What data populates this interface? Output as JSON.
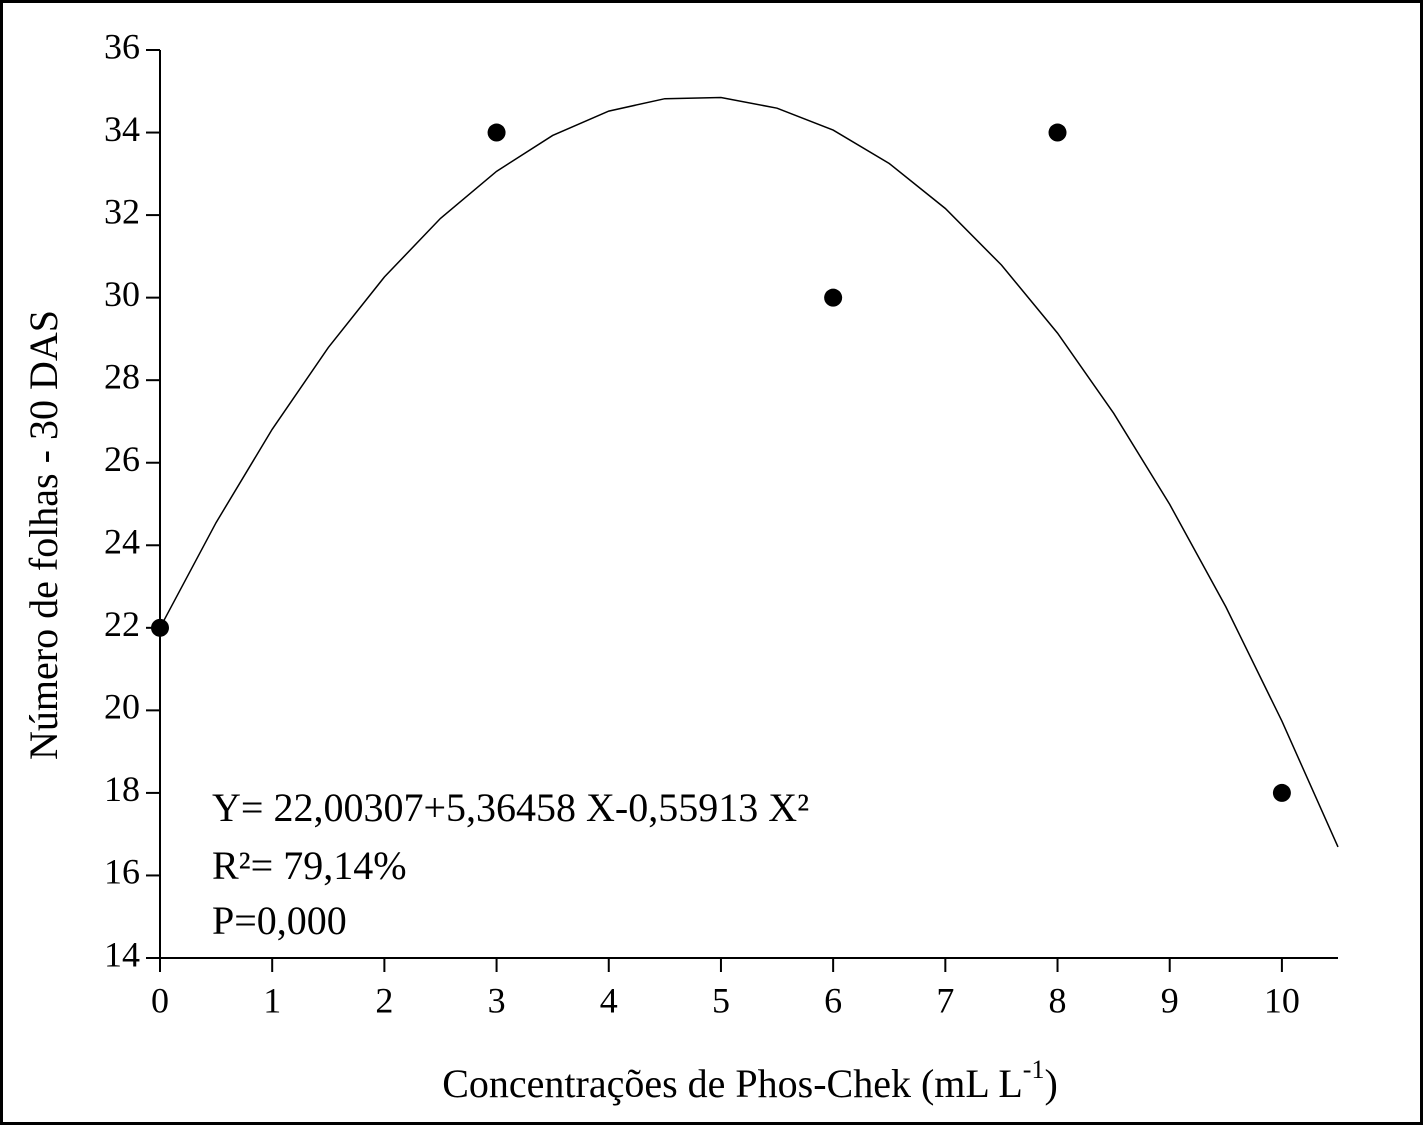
{
  "chart_data": {
    "type": "scatter",
    "x_label": [
      "Concentrações de Phos-Chek (mL L",
      "-1",
      ")"
    ],
    "y_label": "Número de folhas - 30 DAS",
    "annotations": [
      "Y= 22,00307+5,36458 X-0,55913 X²",
      "R²= 79,14%",
      "P=0,000"
    ],
    "x": [
      0,
      3,
      6,
      8,
      10
    ],
    "values": [
      22,
      34,
      30,
      34,
      18
    ],
    "color": "#000000",
    "fit": {
      "x": [
        0,
        0.5,
        1,
        1.5,
        2,
        2.5,
        3,
        3.5,
        4,
        4.5,
        5,
        5.5,
        6,
        6.5,
        7,
        7.5,
        8,
        8.5,
        9,
        9.5,
        10,
        10.5
      ],
      "values": [
        22.0,
        24.55,
        26.81,
        28.79,
        30.5,
        31.92,
        33.06,
        33.93,
        34.52,
        34.82,
        34.85,
        34.59,
        34.06,
        33.25,
        32.16,
        30.79,
        29.14,
        27.2,
        24.99,
        22.51,
        19.74,
        16.69
      ]
    },
    "xlim": [
      0,
      10.5
    ],
    "xticks": [
      0,
      1,
      2,
      3,
      4,
      5,
      6,
      7,
      8,
      9,
      10
    ],
    "ylim": [
      14,
      36
    ],
    "yticks": [
      14,
      16,
      18,
      20,
      22,
      24,
      26,
      28,
      30,
      32,
      34,
      36
    ],
    "grid": false
  }
}
